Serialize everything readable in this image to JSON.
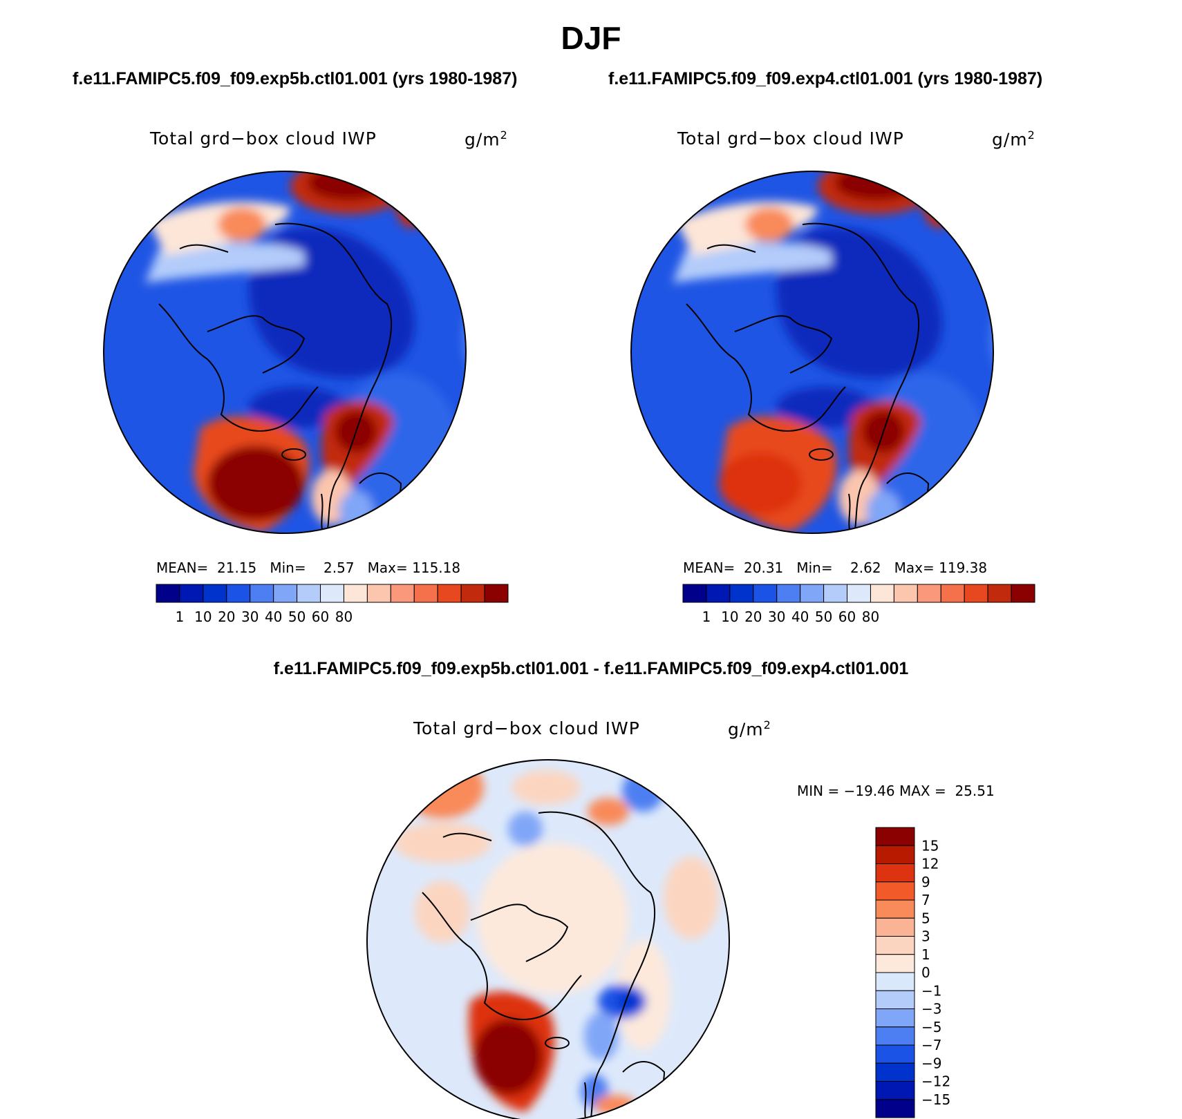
{
  "title": "DJF",
  "run_titles": {
    "left": "f.e11.FAMIPC5.f09_f09.exp5b.ctl01.001 (yrs 1980-1987)",
    "right": "f.e11.FAMIPC5.f09_f09.exp4.ctl01.001 (yrs 1980-1987)",
    "diff": "f.e11.FAMIPC5.f09_f09.exp5b.ctl01.001 - f.e11.FAMIPC5.f09_f09.exp4.ctl01.001"
  },
  "variable": {
    "name": "Total grd−box cloud IWP",
    "unit_base": "g/m",
    "unit_exp": "2"
  },
  "panels": {
    "left": {
      "mean_label": "MEAN=",
      "mean": "21.15",
      "min_label": "Min=",
      "min": "2.57",
      "max_label": "Max=",
      "max": "115.18"
    },
    "right": {
      "mean_label": "MEAN=",
      "mean": "20.31",
      "min_label": "Min=",
      "min": "2.62",
      "max_label": "Max=",
      "max": "119.38"
    },
    "diff": {
      "min_label": "MIN =",
      "min": "−19.46",
      "max_label": "MAX =",
      "max": "25.51"
    }
  },
  "colorbar_abs": {
    "colors": [
      "#00008b",
      "#0018b3",
      "#0033cc",
      "#1a53e6",
      "#4d7ff2",
      "#80a6f7",
      "#b3ccfa",
      "#dde9fb",
      "#fde6d8",
      "#fcc5ad",
      "#f9987a",
      "#f5714b",
      "#e8481f",
      "#c22a0e",
      "#8b0000"
    ],
    "tick_labels": [
      "1",
      "10",
      "20",
      "30",
      "40",
      "50",
      "60",
      "80"
    ]
  },
  "colorbar_diff": {
    "colors": [
      "#8b0000",
      "#b81a00",
      "#dd3310",
      "#f25a2a",
      "#f98a5a",
      "#fbb396",
      "#fcd5c0",
      "#fde9dc",
      "#d9e8fa",
      "#b3ccfa",
      "#80a6f7",
      "#4d7ff2",
      "#1a53e6",
      "#0033cc",
      "#0018b3",
      "#00008b"
    ],
    "tick_labels": [
      "15",
      "12",
      "9",
      "7",
      "5",
      "3",
      "1",
      "0",
      "−1",
      "−3",
      "−5",
      "−7",
      "−9",
      "−12",
      "−15"
    ]
  }
}
